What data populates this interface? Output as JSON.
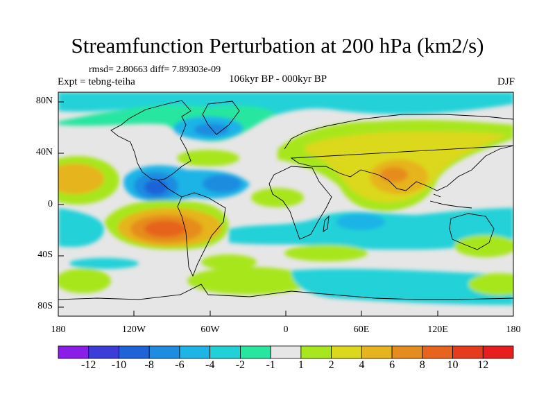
{
  "title": "Streamfunction Perturbation at 200 hPa (km2/s)",
  "stats": "rmsd= 2.80663 diff= 7.89303e-09",
  "left_label": "Expt = tebng-teiha",
  "center_label": "106kyr BP - 000kyr BP",
  "right_label": "DJF",
  "y_ticks": [
    "80N",
    "40N",
    "0",
    "40S",
    "80S"
  ],
  "x_ticks": [
    "180",
    "120W",
    "60W",
    "0",
    "60E",
    "120E",
    "180"
  ],
  "colorbar": {
    "labels": [
      "-12",
      "-10",
      "-8",
      "-6",
      "-4",
      "-2",
      "-1",
      "1",
      "2",
      "4",
      "6",
      "8",
      "10",
      "12"
    ],
    "colors": [
      "#8a1ee8",
      "#3c3cd8",
      "#1e64d8",
      "#1e8ce0",
      "#1eb4e6",
      "#20d2d8",
      "#28e6a0",
      "#e6e6e6",
      "#a8e61e",
      "#dcd81e",
      "#e6b41e",
      "#e68c1e",
      "#e6641e",
      "#e63c1e",
      "#e61e1e"
    ]
  }
}
